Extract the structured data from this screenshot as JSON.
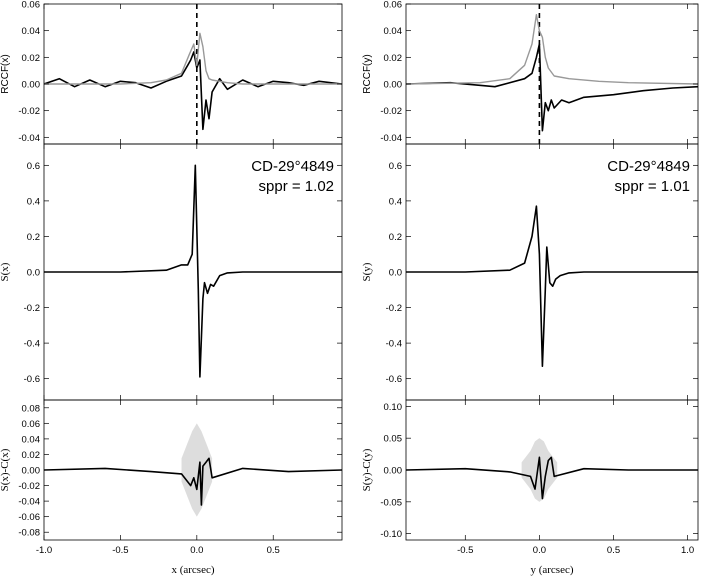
{
  "chart_data": [
    {
      "type": "line",
      "panel": "left-top",
      "ylabel": "RCCF(x)",
      "xlim": [
        -1.0,
        0.95
      ],
      "ylim": [
        -0.045,
        0.06
      ],
      "yticks": [
        -0.04,
        -0.02,
        0.0,
        0.02,
        0.04,
        0.06
      ],
      "ytick_labels": [
        "-0.04",
        "-0.02",
        "0.00",
        "0.02",
        "0.04",
        "0.06"
      ],
      "vline_x": 0.0,
      "series": [
        {
          "color": "#000000",
          "x": [
            -1.0,
            -0.9,
            -0.8,
            -0.7,
            -0.6,
            -0.5,
            -0.4,
            -0.3,
            -0.2,
            -0.1,
            -0.06,
            -0.04,
            -0.02,
            0.0,
            0.02,
            0.04,
            0.06,
            0.08,
            0.1,
            0.15,
            0.2,
            0.3,
            0.4,
            0.5,
            0.6,
            0.7,
            0.8,
            0.95
          ],
          "y": [
            0.0,
            0.004,
            -0.002,
            0.003,
            -0.002,
            0.002,
            0.001,
            -0.003,
            0.002,
            0.006,
            0.014,
            0.018,
            0.024,
            0.012,
            0.018,
            -0.034,
            -0.012,
            -0.026,
            -0.006,
            0.004,
            -0.004,
            0.003,
            -0.002,
            0.002,
            0.001,
            -0.001,
            0.002,
            0.0
          ]
        },
        {
          "color": "#999999",
          "x": [
            -1.0,
            -0.5,
            -0.3,
            -0.2,
            -0.1,
            -0.05,
            -0.02,
            0.0,
            0.02,
            0.04,
            0.06,
            0.08,
            0.1,
            0.15,
            0.2,
            0.3,
            0.5,
            0.95
          ],
          "y": [
            0.0,
            0.0,
            0.001,
            0.003,
            0.008,
            0.022,
            0.03,
            0.014,
            0.038,
            0.028,
            0.01,
            0.004,
            0.003,
            0.002,
            0.001,
            0.0,
            0.0,
            0.0
          ]
        }
      ]
    },
    {
      "type": "line",
      "panel": "left-middle",
      "ylabel": "S(x)",
      "xlim": [
        -1.0,
        0.95
      ],
      "ylim": [
        -0.72,
        0.72
      ],
      "yticks": [
        -0.6,
        -0.4,
        -0.2,
        0.0,
        0.2,
        0.4,
        0.6
      ],
      "ytick_labels": [
        "-0.6",
        "-0.4",
        "-0.2",
        "0.0",
        "0.2",
        "0.4",
        "0.6"
      ],
      "annotations": [
        "CD-29°4849",
        "sppr = 1.02"
      ],
      "series": [
        {
          "color": "#000000",
          "x": [
            -1.0,
            -0.5,
            -0.2,
            -0.1,
            -0.06,
            -0.03,
            -0.01,
            0.01,
            0.02,
            0.04,
            0.05,
            0.07,
            0.09,
            0.11,
            0.15,
            0.2,
            0.3,
            0.5,
            0.95
          ],
          "y": [
            0.0,
            0.0,
            0.01,
            0.04,
            0.04,
            0.1,
            0.6,
            -0.1,
            -0.59,
            -0.15,
            -0.06,
            -0.12,
            -0.07,
            -0.08,
            -0.02,
            -0.005,
            0.0,
            0.0,
            0.0
          ]
        }
      ]
    },
    {
      "type": "line",
      "panel": "left-bottom",
      "ylabel": "S(x)-C(x)",
      "xlabel": "x (arcsec)",
      "xlim": [
        -1.0,
        0.95
      ],
      "ylim": [
        -0.09,
        0.09
      ],
      "xticks": [
        -1.0,
        -0.5,
        0.0,
        0.5
      ],
      "xtick_labels": [
        "-1.0",
        "-0.5",
        "0.0",
        "0.5"
      ],
      "yticks": [
        -0.08,
        -0.06,
        -0.04,
        -0.02,
        0.0,
        0.02,
        0.04,
        0.06,
        0.08
      ],
      "ytick_labels": [
        "-0.08",
        "-0.06",
        "-0.04",
        "-0.02",
        "0.00",
        "0.02",
        "0.04",
        "0.06",
        "0.08"
      ],
      "band": {
        "color": "#dddddd",
        "x": [
          -0.1,
          -0.06,
          -0.03,
          0.0,
          0.03,
          0.06,
          0.1
        ],
        "half_width": [
          0.015,
          0.035,
          0.05,
          0.06,
          0.05,
          0.035,
          0.015
        ]
      },
      "series": [
        {
          "color": "#000000",
          "x": [
            -1.0,
            -0.6,
            -0.3,
            -0.1,
            -0.04,
            -0.02,
            0.0,
            0.02,
            0.03,
            0.04,
            0.06,
            0.08,
            0.1,
            0.3,
            0.6,
            0.95
          ],
          "y": [
            0.0,
            0.002,
            -0.002,
            -0.005,
            -0.02,
            -0.01,
            -0.025,
            0.01,
            -0.045,
            0.005,
            0.01,
            0.015,
            -0.01,
            0.002,
            -0.002,
            0.0
          ]
        }
      ]
    },
    {
      "type": "line",
      "panel": "right-top",
      "ylabel": "RCCF(y)",
      "xlim": [
        -0.9,
        1.07
      ],
      "ylim": [
        -0.045,
        0.06
      ],
      "yticks": [
        -0.04,
        -0.02,
        0.0,
        0.02,
        0.04,
        0.06
      ],
      "ytick_labels": [
        "-0.04",
        "-0.02",
        "0.00",
        "0.02",
        "0.04",
        "0.06"
      ],
      "vline_x": 0.0,
      "series": [
        {
          "color": "#000000",
          "x": [
            -0.9,
            -0.6,
            -0.3,
            -0.1,
            -0.05,
            -0.02,
            0.0,
            0.02,
            0.04,
            0.06,
            0.08,
            0.1,
            0.15,
            0.2,
            0.3,
            0.5,
            0.7,
            0.9,
            1.07
          ],
          "y": [
            0.0,
            0.001,
            -0.002,
            0.004,
            0.008,
            0.02,
            0.03,
            -0.035,
            -0.014,
            -0.02,
            -0.012,
            -0.018,
            -0.012,
            -0.014,
            -0.01,
            -0.008,
            -0.005,
            -0.003,
            -0.002
          ]
        },
        {
          "color": "#999999",
          "x": [
            -0.9,
            -0.4,
            -0.2,
            -0.1,
            -0.05,
            -0.02,
            0.0,
            0.02,
            0.04,
            0.06,
            0.1,
            0.2,
            0.4,
            0.6,
            1.07
          ],
          "y": [
            0.0,
            0.001,
            0.004,
            0.014,
            0.03,
            0.052,
            0.04,
            0.035,
            0.02,
            0.012,
            0.006,
            0.004,
            0.002,
            0.001,
            0.0
          ]
        }
      ]
    },
    {
      "type": "line",
      "panel": "right-middle",
      "ylabel": "S(y)",
      "xlim": [
        -0.9,
        1.07
      ],
      "ylim": [
        -0.72,
        0.72
      ],
      "yticks": [
        -0.6,
        -0.4,
        -0.2,
        0.0,
        0.2,
        0.4,
        0.6
      ],
      "ytick_labels": [
        "-0.6",
        "-0.4",
        "-0.2",
        "0.0",
        "0.2",
        "0.4",
        "0.6"
      ],
      "annotations": [
        "CD-29°4849",
        "sppr = 1.01"
      ],
      "series": [
        {
          "color": "#000000",
          "x": [
            -0.9,
            -0.5,
            -0.2,
            -0.1,
            -0.05,
            -0.02,
            0.0,
            0.02,
            0.04,
            0.05,
            0.07,
            0.09,
            0.11,
            0.14,
            0.2,
            0.3,
            0.5,
            1.07
          ],
          "y": [
            0.0,
            0.0,
            0.01,
            0.05,
            0.2,
            0.37,
            0.1,
            -0.53,
            -0.1,
            0.14,
            -0.06,
            -0.08,
            -0.04,
            -0.02,
            -0.005,
            0.0,
            0.0,
            0.0
          ]
        }
      ]
    },
    {
      "type": "line",
      "panel": "right-bottom",
      "ylabel": "S(y)-C(y)",
      "xlabel": "y (arcsec)",
      "xlim": [
        -0.9,
        1.07
      ],
      "ylim": [
        -0.11,
        0.11
      ],
      "xticks": [
        -0.5,
        0.0,
        0.5,
        1.0
      ],
      "xtick_labels": [
        "-0.5",
        "0.0",
        "0.5",
        "1.0"
      ],
      "yticks": [
        -0.1,
        -0.05,
        0.0,
        0.05,
        0.1
      ],
      "ytick_labels": [
        "-0.10",
        "-0.05",
        "0.00",
        "0.05",
        "0.10"
      ],
      "band": {
        "color": "#dddddd",
        "x": [
          -0.12,
          -0.06,
          -0.03,
          0.0,
          0.03,
          0.06,
          0.12
        ],
        "half_width": [
          0.012,
          0.03,
          0.045,
          0.05,
          0.045,
          0.03,
          0.012
        ]
      },
      "series": [
        {
          "color": "#000000",
          "x": [
            -0.9,
            -0.5,
            -0.2,
            -0.06,
            -0.03,
            0.0,
            0.02,
            0.04,
            0.06,
            0.08,
            0.1,
            0.3,
            0.6,
            1.07
          ],
          "y": [
            0.0,
            0.002,
            -0.003,
            -0.01,
            -0.03,
            0.02,
            -0.045,
            -0.01,
            0.015,
            0.02,
            -0.01,
            0.002,
            0.0,
            0.0
          ]
        }
      ]
    }
  ]
}
